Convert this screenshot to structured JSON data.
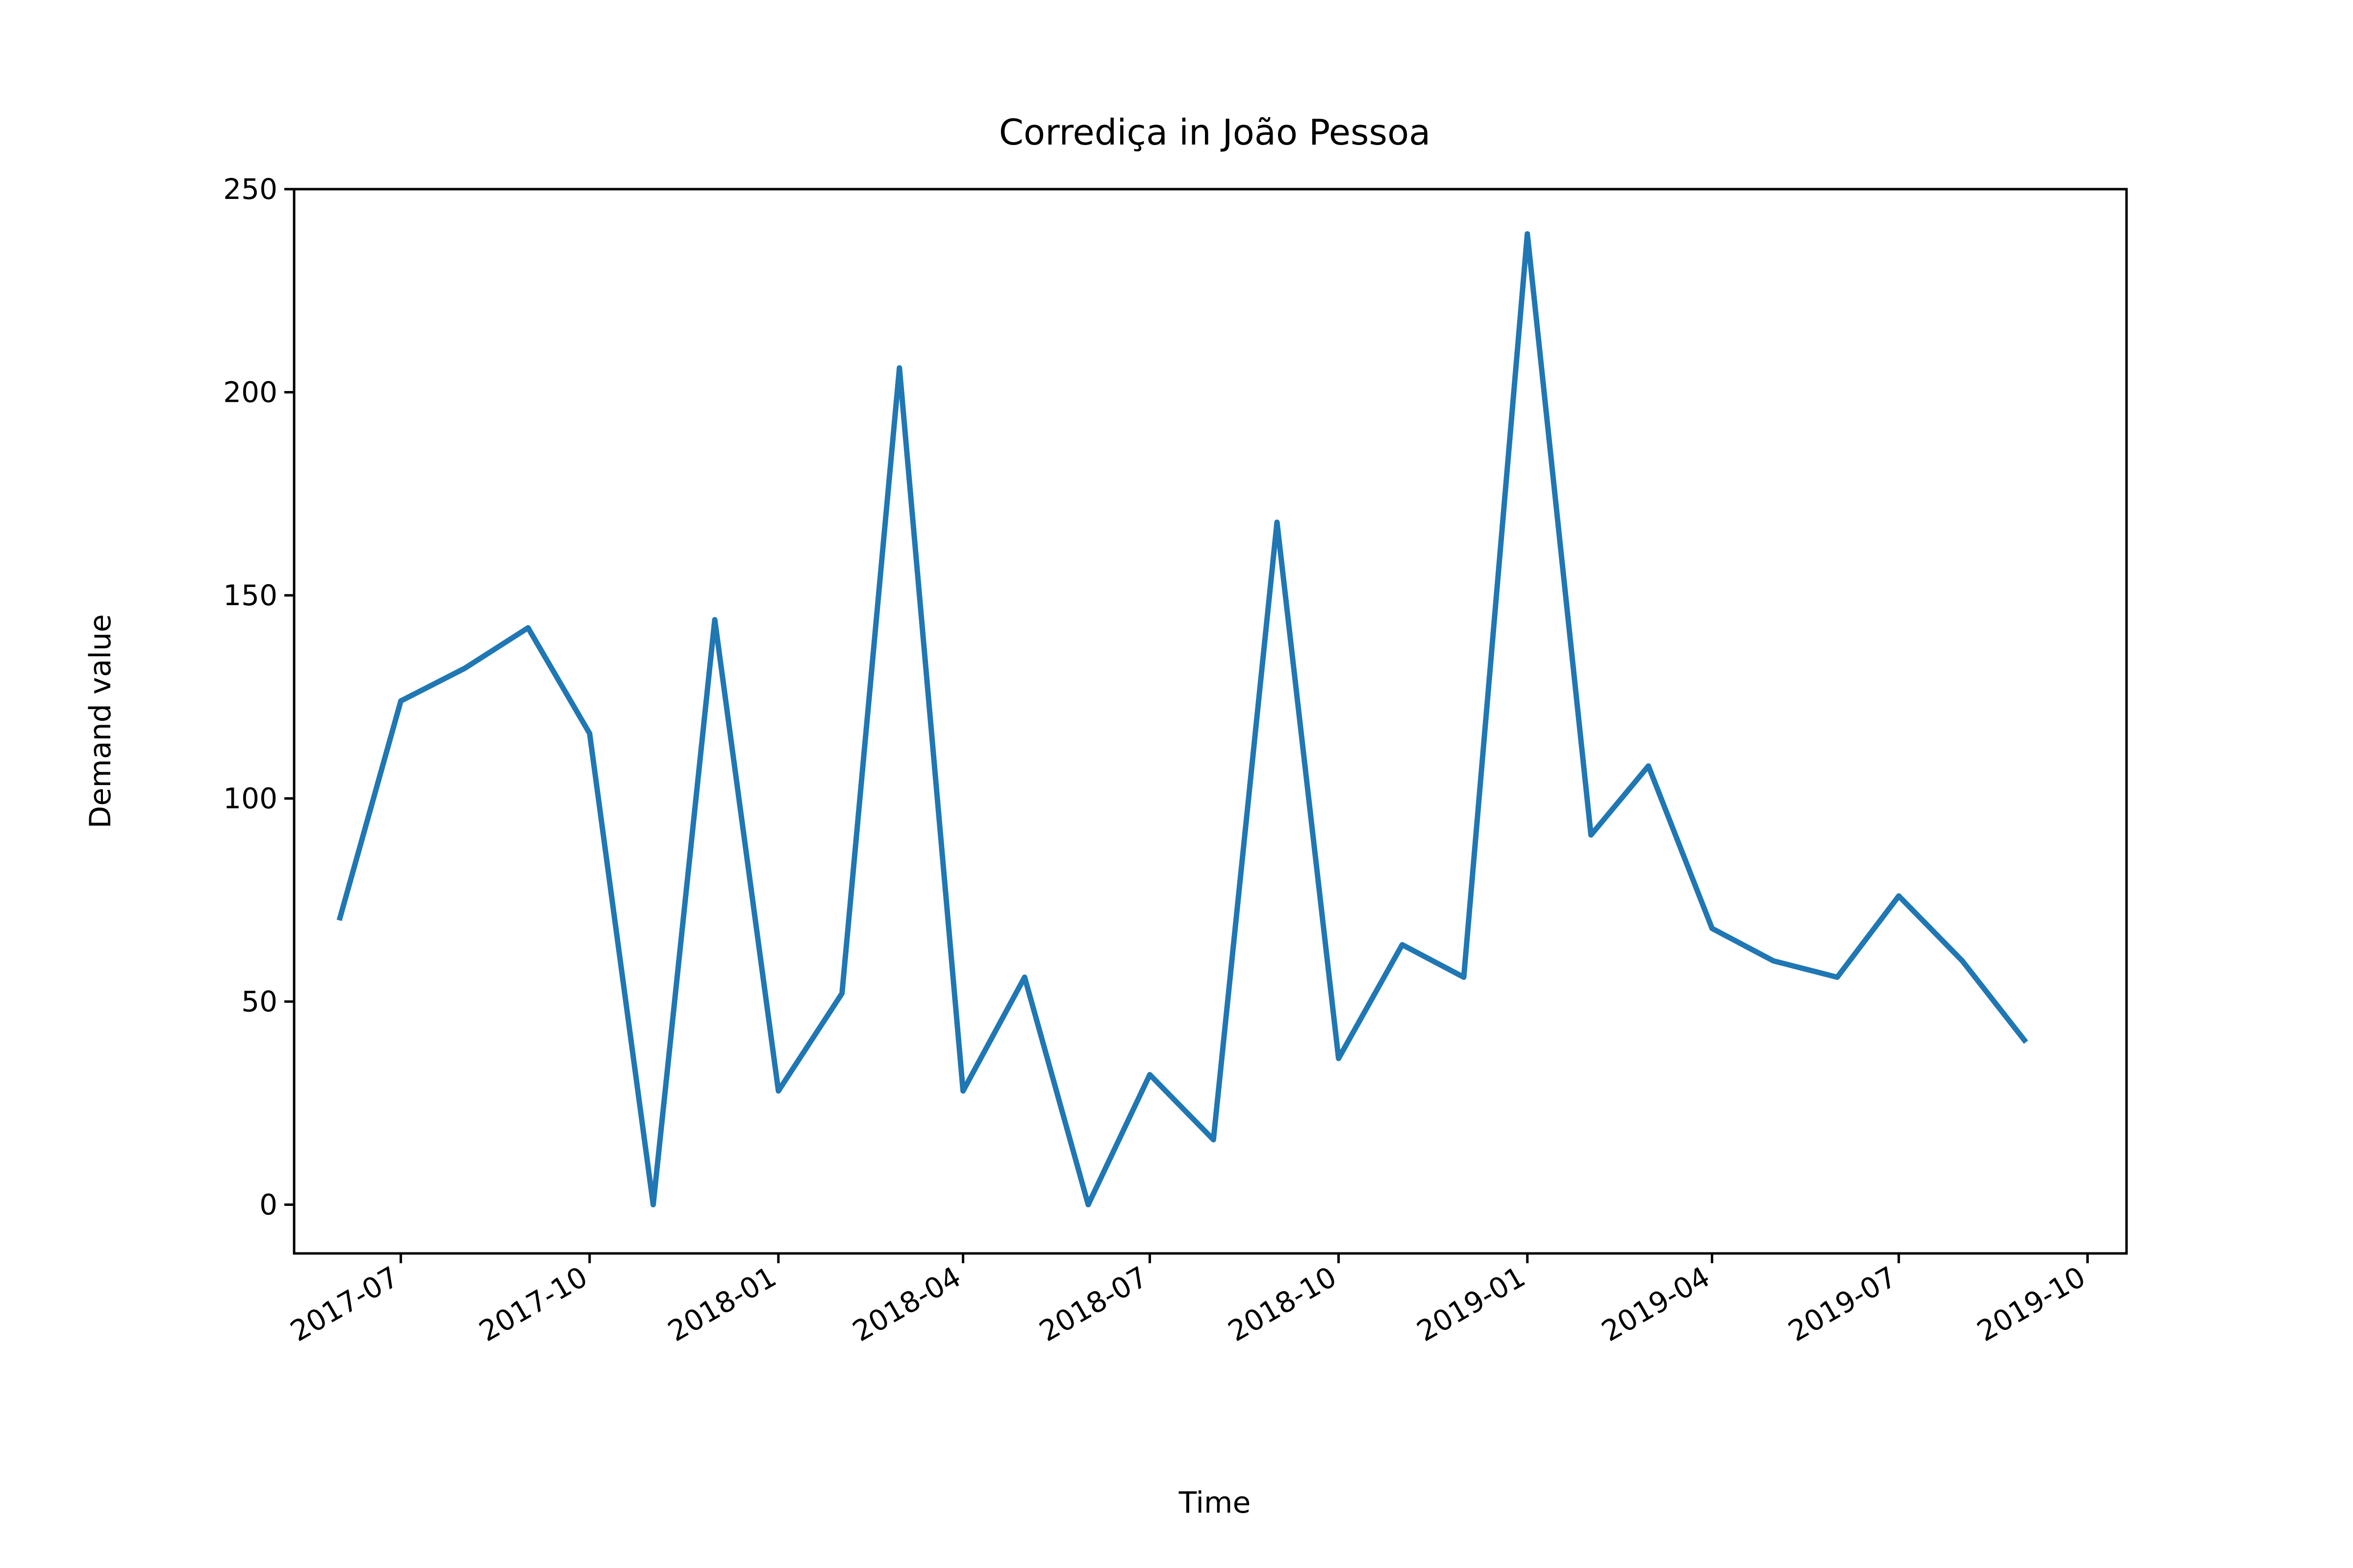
{
  "chart_data": {
    "type": "line",
    "title": "Corrediça in João Pessoa",
    "xlabel": "Time",
    "ylabel": "Demand value",
    "ylim": [
      -12,
      250
    ],
    "xlim": [
      "2017-05-10",
      "2019-10-20"
    ],
    "grid": false,
    "yticks": [
      0,
      50,
      100,
      150,
      200,
      250
    ],
    "xticks": [
      "2017-07",
      "2017-10",
      "2018-01",
      "2018-04",
      "2018-07",
      "2018-10",
      "2019-01",
      "2019-04",
      "2019-07",
      "2019-10"
    ],
    "series": [
      {
        "color": "#1f77b4",
        "x": [
          "2017-06",
          "2017-07",
          "2017-08",
          "2017-09",
          "2017-10",
          "2017-11",
          "2017-12",
          "2018-01",
          "2018-02",
          "2018-03",
          "2018-04",
          "2018-05",
          "2018-06",
          "2018-07",
          "2018-08",
          "2018-09",
          "2018-10",
          "2018-11",
          "2018-12",
          "2019-01",
          "2019-02",
          "2019-03",
          "2019-04",
          "2019-05",
          "2019-06",
          "2019-07",
          "2019-08",
          "2019-09"
        ],
        "values": [
          70,
          124,
          132,
          142,
          116,
          0,
          144,
          28,
          52,
          206,
          28,
          56,
          0,
          32,
          16,
          168,
          36,
          64,
          56,
          239,
          91,
          108,
          68,
          60,
          56,
          76,
          60,
          40
        ]
      }
    ]
  }
}
